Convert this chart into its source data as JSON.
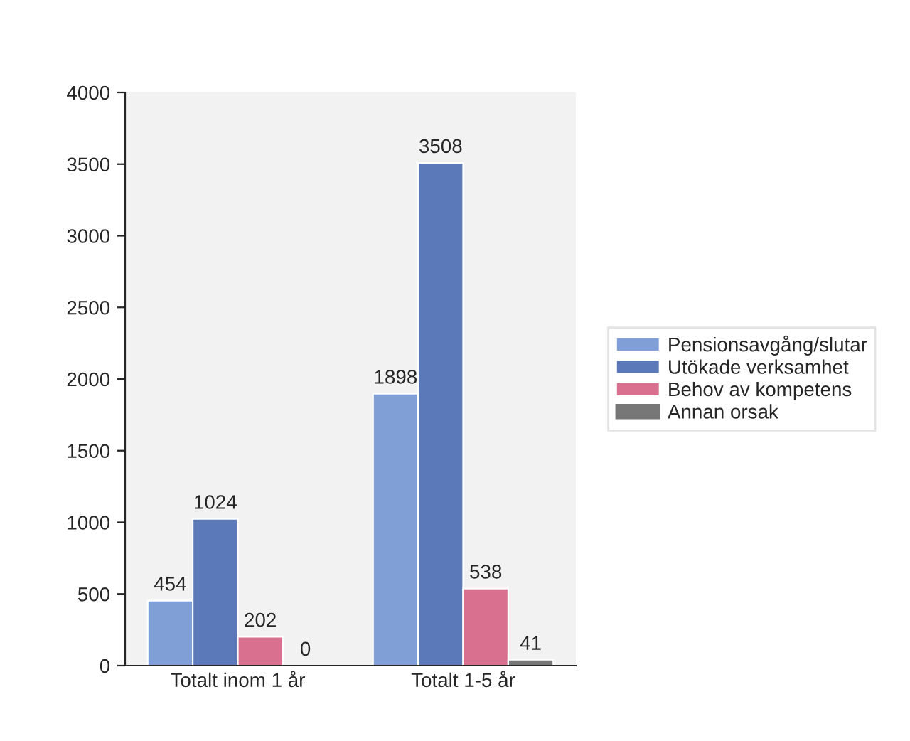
{
  "chart_data": {
    "type": "bar",
    "categories": [
      "Totalt inom 1 år",
      "Totalt 1-5 år"
    ],
    "series": [
      {
        "name": "Pensionsavgång/slutar",
        "color": "#7f9fd6",
        "values": [
          454,
          1898
        ]
      },
      {
        "name": "Utökade verksamhet",
        "color": "#5b78b8",
        "values": [
          1024,
          3508
        ]
      },
      {
        "name": "Behov av kompetens",
        "color": "#d9708f",
        "values": [
          202,
          538
        ]
      },
      {
        "name": "Annan orsak",
        "color": "#777777",
        "values": [
          0,
          41
        ]
      }
    ],
    "ylim": [
      0,
      4000
    ],
    "yticks": [
      0,
      500,
      1000,
      1500,
      2000,
      2500,
      3000,
      3500,
      4000
    ],
    "data_labels": true,
    "legend": "right",
    "grid": false
  }
}
